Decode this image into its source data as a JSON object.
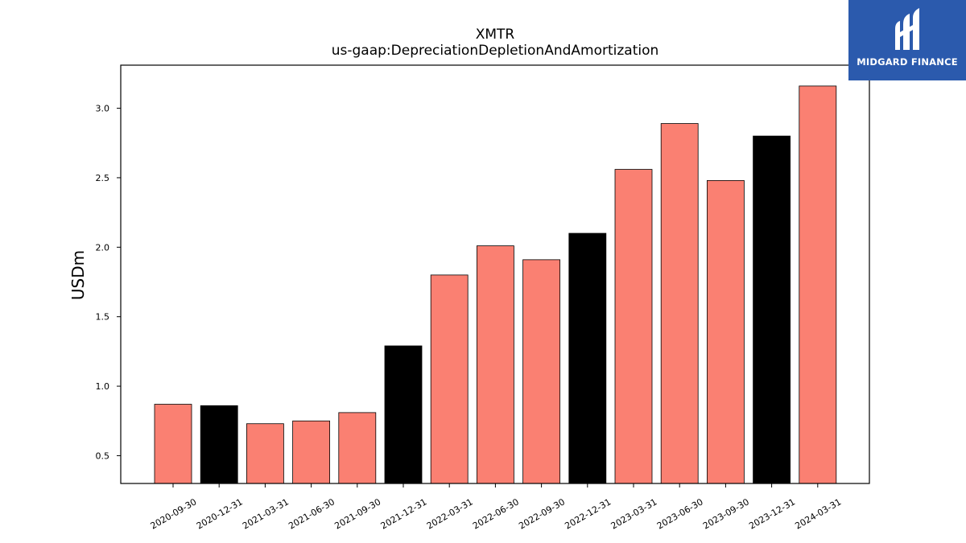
{
  "logo": {
    "text": "MIDGARD FINANCE",
    "icon": "midgard-logo-icon",
    "background": "#2b5aad"
  },
  "chart_data": {
    "type": "bar",
    "title": "XMTR",
    "subtitle": "us-gaap:DepreciationDepletionAndAmortization",
    "xlabel": "",
    "ylabel": "USDm",
    "ylim": [
      0.3,
      3.31
    ],
    "yticks": [
      0.5,
      1.0,
      1.5,
      2.0,
      2.5,
      3.0
    ],
    "ytick_labels": [
      "0.5",
      "1.0",
      "1.5",
      "2.0",
      "2.5",
      "3.0"
    ],
    "grid": false,
    "categories": [
      "2020-09-30",
      "2020-12-31",
      "2021-03-31",
      "2021-06-30",
      "2021-09-30",
      "2021-12-31",
      "2022-03-31",
      "2022-06-30",
      "2022-09-30",
      "2022-12-31",
      "2023-03-31",
      "2023-06-30",
      "2023-09-30",
      "2023-12-31",
      "2024-03-31"
    ],
    "values": [
      0.87,
      0.86,
      0.73,
      0.75,
      0.81,
      1.29,
      1.8,
      2.01,
      1.91,
      2.1,
      2.56,
      2.89,
      2.48,
      2.8,
      3.16
    ],
    "bar_colors": [
      "#fa8072",
      "#000000",
      "#fa8072",
      "#fa8072",
      "#fa8072",
      "#000000",
      "#fa8072",
      "#fa8072",
      "#fa8072",
      "#000000",
      "#fa8072",
      "#fa8072",
      "#fa8072",
      "#000000",
      "#fa8072"
    ]
  }
}
